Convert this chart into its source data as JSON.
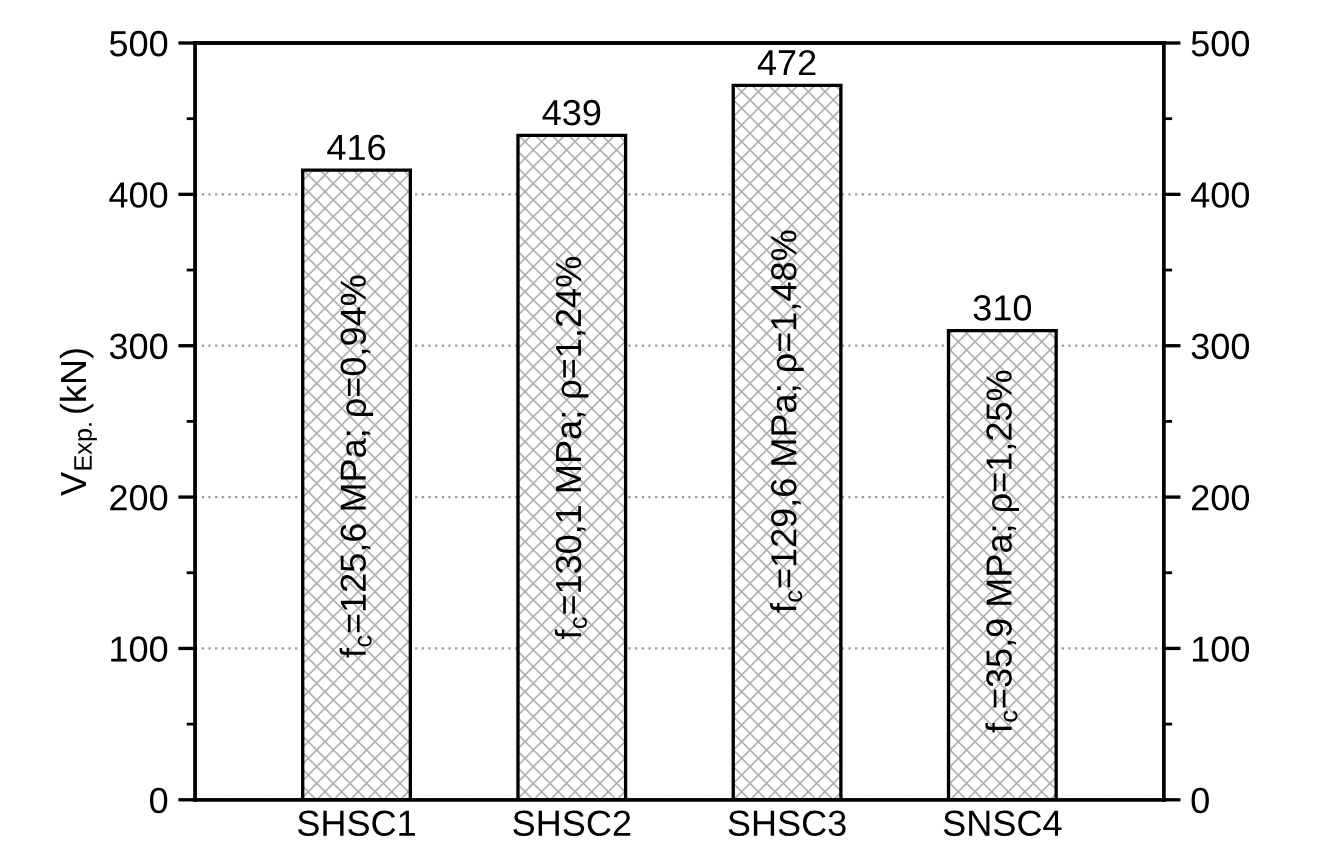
{
  "chart_data": {
    "type": "bar",
    "categories": [
      "SHSC1",
      "SHSC2",
      "SHSC3",
      "SNSC4"
    ],
    "values": [
      416,
      439,
      472,
      310
    ],
    "color": "#b0b0b0",
    "ylabel": "V$_{Exp.}$(kN)",
    "ylim": [
      0,
      500
    ],
    "yticks": [
      0,
      100,
      200,
      300,
      400,
      500
    ],
    "y2lim": [
      0,
      500
    ],
    "y2ticks": [
      0,
      100,
      200,
      300,
      400,
      500
    ],
    "grid": "y",
    "data_labels": true,
    "annotations": [
      "f$_{c}$=125,6 MPa; ρ=0,94%",
      "f$_{c}$=130,1 MPa; ρ=1,24%",
      "f$_{c}$=129,6 MPa; ρ=1,48%",
      "f$_{c}$=35,9 MPa; ρ=1,25%"
    ]
  }
}
